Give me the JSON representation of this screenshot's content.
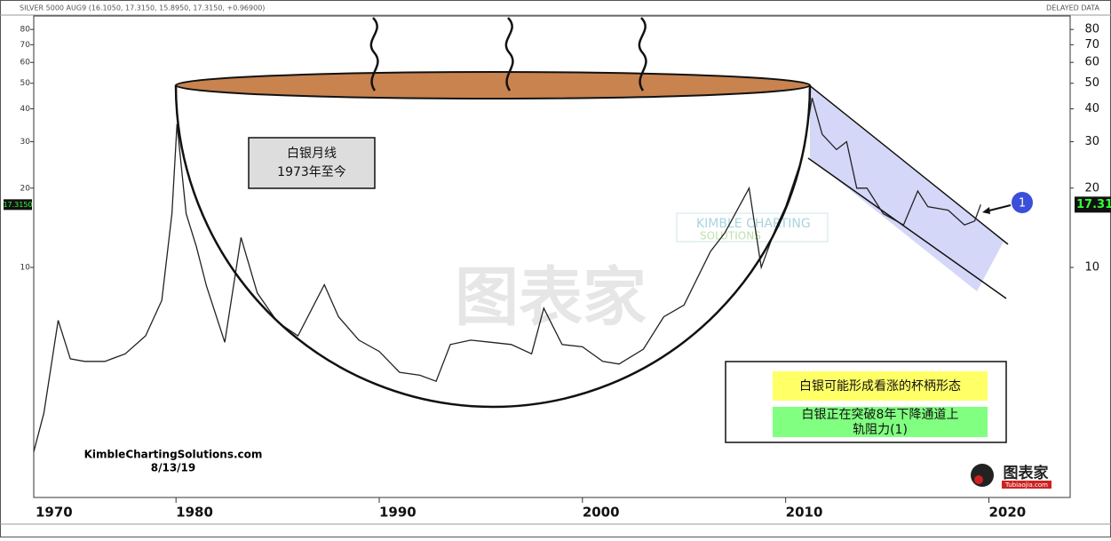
{
  "chart_data": {
    "type": "line",
    "title": "SILVER 5000 AUG9 (16.1050, 17.3150, 15.8950, 17.3150, +0.96900)",
    "status": "DELAYED DATA",
    "log_scale": true,
    "color": "#222222",
    "x": [
      1973.0,
      1973.5,
      1974.2,
      1974.8,
      1975.5,
      1976.5,
      1977.5,
      1978.5,
      1979.3,
      1979.8,
      1980.05,
      1980.5,
      1981.0,
      1981.5,
      1982.4,
      1983.2,
      1984.0,
      1985.0,
      1986.0,
      1987.3,
      1988.0,
      1989.0,
      1990.0,
      1991.0,
      1992.0,
      1992.8,
      1993.5,
      1994.5,
      1995.5,
      1996.5,
      1997.5,
      1998.1,
      1999.0,
      2000.0,
      2001.0,
      2001.8,
      2003.0,
      2004.0,
      2005.0,
      2006.3,
      2007.0,
      2008.2,
      2008.8,
      2009.5,
      2010.0,
      2010.8,
      2011.3,
      2011.8,
      2012.5,
      2013.0,
      2013.5,
      2014.0,
      2014.8,
      2015.8,
      2016.5,
      2017.0,
      2018.0,
      2018.8,
      2019.3,
      2019.6
    ],
    "values": [
      2.0,
      2.8,
      6.3,
      4.5,
      4.4,
      4.4,
      4.7,
      5.5,
      7.5,
      16,
      35,
      16,
      12,
      8.5,
      5.2,
      13,
      8,
      6.2,
      5.5,
      8.6,
      6.5,
      5.3,
      4.8,
      4.0,
      3.9,
      3.7,
      5.1,
      5.3,
      5.2,
      5.1,
      4.7,
      7.0,
      5.1,
      5.0,
      4.4,
      4.3,
      4.9,
      6.5,
      7.2,
      11.5,
      13.5,
      20,
      10,
      14,
      17,
      26,
      44,
      32,
      28,
      30,
      20,
      20,
      16,
      14.5,
      19.5,
      17,
      16.5,
      14.5,
      15,
      17.315
    ],
    "xlim": [
      1973,
      2024
    ],
    "ylim": [
      1.34,
      90
    ],
    "xticks": [
      {
        "value": 1970,
        "label": "1970"
      },
      1980,
      1990,
      2000,
      2010,
      2020
    ],
    "yticks": [
      10,
      20,
      30,
      40,
      50,
      60,
      70,
      80
    ],
    "price_tags": [
      "17.3150",
      "17.31"
    ],
    "annotations": {
      "box_title": [
        "白银月线",
        "1973年至今"
      ],
      "note_yellow": "白银可能形成看涨的杯柄形态",
      "note_green": [
        "白银正在突破8年下降通道上",
        "轨阻力(1)"
      ],
      "marker": "1",
      "source": "KimbleChartingSolutions.com",
      "date": "8/13/19",
      "watermark": "KIMBLE CHARTING",
      "watermark_sub": "SOLUTIONS",
      "logo_cn": "图表家",
      "logo_url": "Tubiaojia.com"
    }
  }
}
